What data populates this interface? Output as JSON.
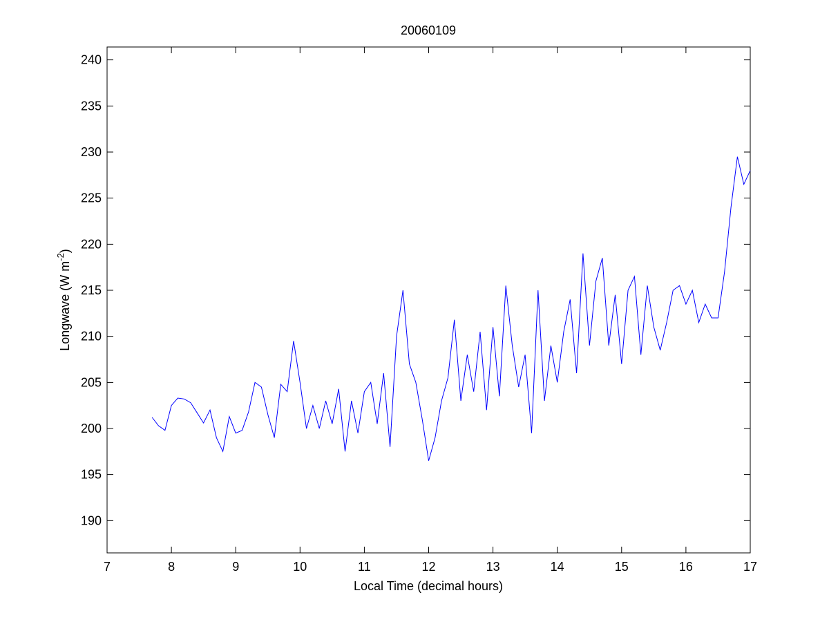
{
  "chart_data": {
    "type": "line",
    "title": "20060109",
    "xlabel": "Local Time (decimal hours)",
    "ylabel": {
      "text": "Longwave (W m",
      "superscript": "-2",
      "suffix": ")"
    },
    "xlim": [
      7,
      17
    ],
    "xticks": [
      7,
      8,
      9,
      10,
      11,
      12,
      13,
      14,
      15,
      16,
      17
    ],
    "ylim": [
      186.5,
      241.4
    ],
    "yticks": [
      190,
      195,
      200,
      205,
      210,
      215,
      220,
      225,
      230,
      235,
      240
    ],
    "x": [
      7.7,
      7.8,
      7.9,
      8.0,
      8.1,
      8.2,
      8.3,
      8.4,
      8.5,
      8.6,
      8.7,
      8.8,
      8.9,
      9.0,
      9.1,
      9.2,
      9.3,
      9.4,
      9.5,
      9.6,
      9.7,
      9.8,
      9.9,
      10.0,
      10.1,
      10.2,
      10.3,
      10.4,
      10.5,
      10.6,
      10.7,
      10.8,
      10.9,
      11.0,
      11.1,
      11.2,
      11.3,
      11.4,
      11.5,
      11.6,
      11.7,
      11.8,
      11.9,
      12.0,
      12.1,
      12.2,
      12.3,
      12.4,
      12.5,
      12.6,
      12.7,
      12.8,
      12.9,
      13.0,
      13.1,
      13.2,
      13.3,
      13.4,
      13.5,
      13.6,
      13.7,
      13.8,
      13.9,
      14.0,
      14.1,
      14.2,
      14.3,
      14.4,
      14.5,
      14.6,
      14.7,
      14.8,
      14.9,
      15.0,
      15.1,
      15.2,
      15.3,
      15.4,
      15.5,
      15.6,
      15.7,
      15.8,
      15.9,
      16.0,
      16.1,
      16.2,
      16.3,
      16.4,
      16.5,
      16.6,
      16.7,
      16.8,
      16.9,
      17.0
    ],
    "series": [
      {
        "color": "#0000ff",
        "values": [
          201.2,
          200.3,
          199.8,
          202.5,
          203.3,
          203.2,
          202.8,
          201.7,
          200.6,
          202.0,
          199.0,
          197.5,
          201.3,
          199.5,
          199.8,
          201.8,
          205.0,
          204.5,
          201.5,
          199.0,
          204.8,
          204.0,
          209.5,
          205.0,
          200.0,
          202.5,
          200.0,
          203.0,
          200.5,
          204.3,
          197.5,
          203.0,
          199.5,
          204.0,
          205.0,
          200.5,
          206.0,
          198.0,
          210.0,
          215.0,
          207.0,
          205.0,
          201.0,
          196.5,
          199.0,
          203.0,
          205.5,
          211.8,
          203.0,
          208.0,
          204.0,
          210.5,
          202.0,
          211.0,
          203.5,
          215.5,
          209.0,
          204.5,
          208.0,
          199.5,
          215.0,
          203.0,
          209.0,
          205.0,
          210.5,
          214.0,
          206.0,
          219.0,
          209.0,
          216.0,
          218.5,
          209.0,
          214.5,
          207.0,
          215.0,
          216.5,
          208.0,
          215.5,
          211.0,
          208.5,
          211.5,
          215.0,
          215.5,
          213.5,
          215.0,
          211.5,
          213.5,
          212.0,
          212.0,
          217.0,
          224.0,
          229.5,
          226.5,
          228.0
        ]
      }
    ]
  }
}
